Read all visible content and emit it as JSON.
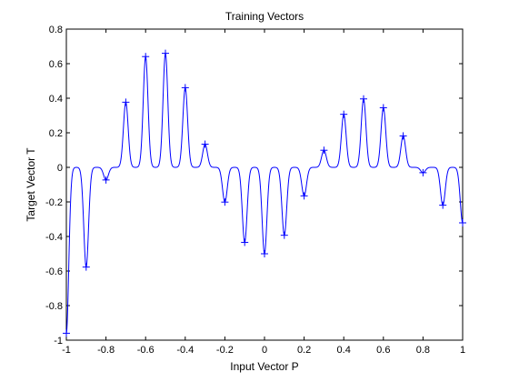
{
  "chart_data": {
    "type": "line",
    "title": "Training Vectors",
    "xlabel": "Input Vector P",
    "ylabel": "Target Vector T",
    "xlim": [
      -1,
      1
    ],
    "ylim": [
      -1,
      0.8
    ],
    "xticks": [
      -1,
      -0.8,
      -0.6,
      -0.4,
      -0.2,
      0,
      0.2,
      0.4,
      0.6,
      0.8,
      1
    ],
    "xtick_labels": [
      "-1",
      "-0.8",
      "-0.6",
      "-0.4",
      "-0.2",
      "0",
      "0.2",
      "0.4",
      "0.6",
      "0.8",
      "1"
    ],
    "yticks": [
      -1,
      -0.8,
      -0.6,
      -0.4,
      -0.2,
      0,
      0.2,
      0.4,
      0.6,
      0.8
    ],
    "ytick_labels": [
      "-1",
      "-0.8",
      "-0.6",
      "-0.4",
      "-0.2",
      "0",
      "0.2",
      "0.4",
      "0.6",
      "0.8"
    ],
    "grid": false,
    "legend": "none",
    "series": [
      {
        "kind": "scatter",
        "marker": "+",
        "color": "#0000ff",
        "x": [
          -1,
          -0.9,
          -0.8,
          -0.7,
          -0.6,
          -0.5,
          -0.4,
          -0.3,
          -0.2,
          -0.1,
          0,
          0.1,
          0.2,
          0.3,
          0.4,
          0.5,
          0.6,
          0.7,
          0.8,
          0.9,
          1
        ],
        "y": [
          -0.96,
          -0.577,
          -0.073,
          0.377,
          0.641,
          0.66,
          0.461,
          0.134,
          -0.201,
          -0.434,
          -0.5,
          -0.393,
          -0.165,
          0.099,
          0.307,
          0.396,
          0.345,
          0.182,
          -0.031,
          -0.219,
          -0.321
        ]
      },
      {
        "kind": "line",
        "color": "#0000ff",
        "rbf_spread": 0.012
      }
    ]
  }
}
